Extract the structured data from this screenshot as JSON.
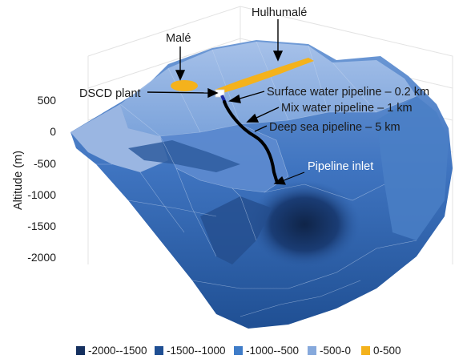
{
  "figure": {
    "y_axis_label": "Altitude (m)",
    "y_ticks": [
      "500",
      "0",
      "-500",
      "-1000",
      "-1500",
      "-2000"
    ],
    "labels": {
      "male": "Malé",
      "hulhumale": "Hulhumalé",
      "dscd_plant": "DSCD plant",
      "surface_pipeline": "Surface water pipeline – 0.2 km",
      "mix_pipeline": "Mix water pipeline – 1 km",
      "deep_sea_pipeline": "Deep sea pipeline – 5 km",
      "pipeline_inlet": "Pipeline inlet"
    },
    "legend": [
      {
        "label": "-2000--1500",
        "color": "#15305f"
      },
      {
        "label": "-1500--1000",
        "color": "#1f4f93"
      },
      {
        "label": "-1000--500",
        "color": "#3f7cc8"
      },
      {
        "label": "-500-0",
        "color": "#86a9dc"
      },
      {
        "label": "0-500",
        "color": "#f4b21c"
      }
    ]
  }
}
